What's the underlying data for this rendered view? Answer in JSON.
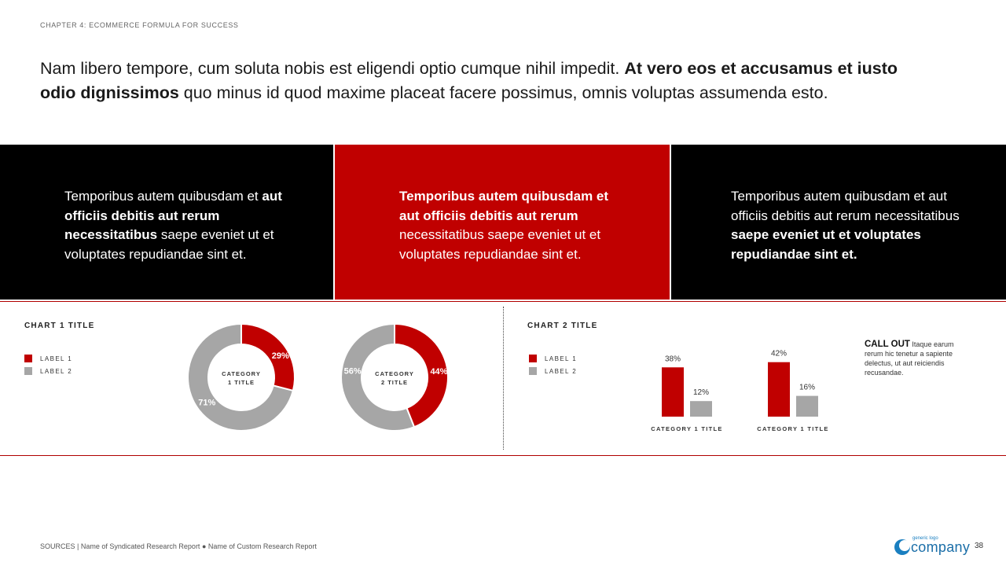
{
  "chapter": "CHAPTER 4: ECOMMERCE FORMULA FOR SUCCESS",
  "headline": {
    "part1": "Nam libero tempore, cum soluta nobis est eligendi optio cumque nihil impedit. ",
    "bold": "At vero eos et accusamus et iusto odio dignissimos",
    "part2": " quo minus id quod maxime placeat facere possimus, omnis voluptas assumenda esto."
  },
  "panels": [
    {
      "t1": "Temporibus autem quibusdam et ",
      "b1": "aut officiis debitis aut rerum necessitatibus",
      "t2": " saepe eveniet ut et voluptates repudiandae sint et."
    },
    {
      "b1": "Temporibus autem quibusdam et aut officiis debitis aut rerum",
      "t2": " necessitatibus saepe eveniet ut et voluptates repudiandae sint et."
    },
    {
      "t1": "Temporibus autem quibusdam et aut officiis debitis aut rerum necessitatibus ",
      "b1": "saepe eveniet ut et voluptates repudiandae sint et."
    }
  ],
  "colors": {
    "red": "#c00000",
    "gray": "#a6a6a6",
    "black": "#000000"
  },
  "chart_data": [
    {
      "type": "pie",
      "title": "CHART 1 TITLE",
      "legend": [
        "LABEL 1",
        "LABEL 2"
      ],
      "donuts": [
        {
          "label": "CATEGORY 1 TITLE",
          "label_lines": [
            "CATEGORY",
            "1 TITLE"
          ],
          "values": [
            29,
            71
          ],
          "value_labels": [
            "29%",
            "71%"
          ]
        },
        {
          "label": "CATEGORY 2 TITLE",
          "label_lines": [
            "CATEGORY",
            "2 TITLE"
          ],
          "values": [
            44,
            56
          ],
          "value_labels": [
            "44%",
            "56%"
          ]
        }
      ]
    },
    {
      "type": "bar",
      "title": "CHART 2 TITLE",
      "legend": [
        "LABEL 1",
        "LABEL 2"
      ],
      "categories": [
        "CATEGORY 1 TITLE",
        "CATEGORY 1 TITLE"
      ],
      "series": [
        {
          "name": "LABEL 1",
          "values": [
            38,
            42
          ],
          "value_labels": [
            "38%",
            "42%"
          ]
        },
        {
          "name": "LABEL 2",
          "values": [
            12,
            16
          ],
          "value_labels": [
            "12%",
            "16%"
          ]
        }
      ]
    }
  ],
  "callout": {
    "label": "CALL OUT",
    "text": " Itaque earum rerum hic tenetur a sapiente delectus, ut aut reiciendis recusandae."
  },
  "sources": {
    "label": "SOURCES",
    "sep": " | ",
    "item1": "Name of Syndicated Research Report",
    "bullet": " ● ",
    "item2": "Name of Custom Research Report"
  },
  "logo": {
    "small": "generic logo",
    "big": "company"
  },
  "page_number": "38"
}
